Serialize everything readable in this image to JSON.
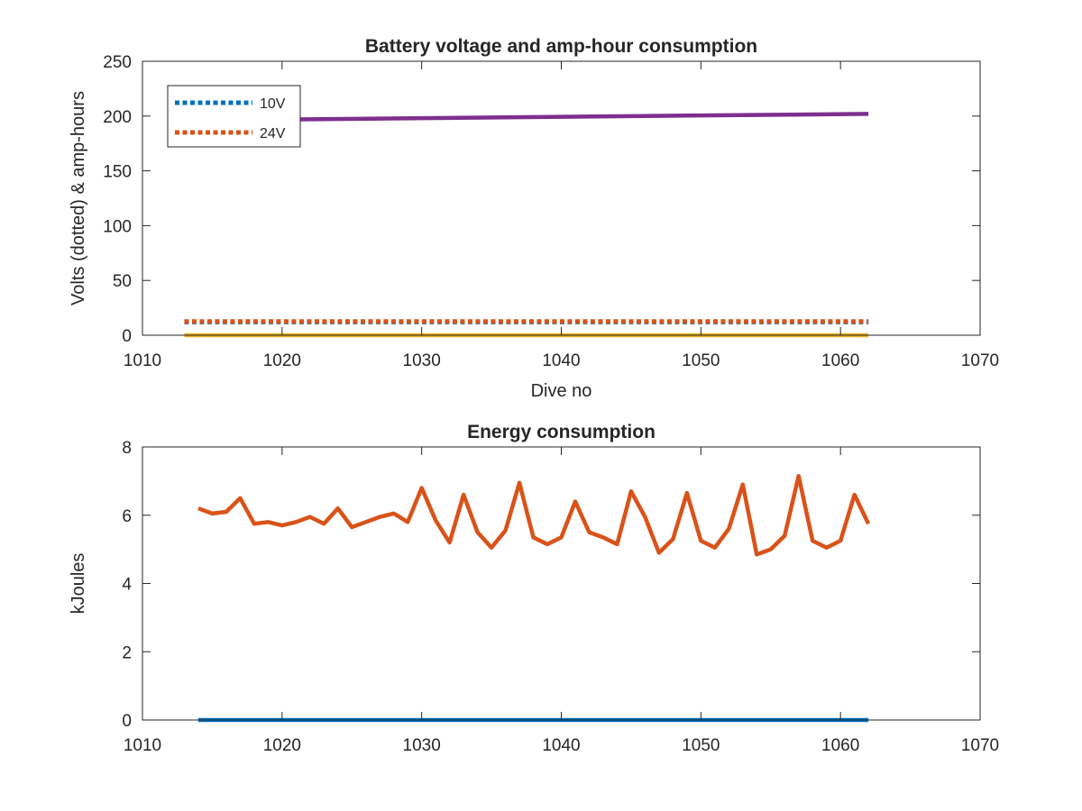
{
  "chart_data": [
    {
      "type": "line",
      "title": "Battery voltage and amp-hour consumption",
      "xlabel": "Dive no",
      "ylabel": "Volts (dotted) & amp-hours",
      "xlim": [
        1010,
        1070
      ],
      "ylim": [
        0,
        250
      ],
      "xticks": [
        "1010",
        "1020",
        "1030",
        "1040",
        "1050",
        "1060",
        "1070"
      ],
      "yticks": [
        "0",
        "50",
        "100",
        "150",
        "200",
        "250"
      ],
      "legend_position": "top-left",
      "legend": [
        "10V",
        "24V"
      ],
      "series": [
        {
          "name": "10V",
          "style": "dotted",
          "color": "#0072BD",
          "x": [
            1013,
            1062
          ],
          "y": [
            12,
            12
          ]
        },
        {
          "name": "24V",
          "style": "dotted",
          "color": "#D95319",
          "x": [
            1013,
            1062
          ],
          "y": [
            12.5,
            12.5
          ]
        },
        {
          "style": "solid",
          "color": "#EDB120",
          "x": [
            1013,
            1062
          ],
          "y": [
            0,
            0
          ]
        },
        {
          "style": "solid",
          "color": "#7E2F8E",
          "x": [
            1013,
            1062
          ],
          "y": [
            196,
            202
          ]
        }
      ]
    },
    {
      "type": "line",
      "title": "Energy consumption",
      "xlabel": "",
      "ylabel": "kJoules",
      "xlim": [
        1010,
        1070
      ],
      "ylim": [
        0,
        8
      ],
      "xticks": [
        "1010",
        "1020",
        "1030",
        "1040",
        "1050",
        "1060",
        "1070"
      ],
      "yticks": [
        "0",
        "2",
        "4",
        "6",
        "8"
      ],
      "series": [
        {
          "style": "solid",
          "color": "#D95319",
          "x": [
            1014,
            1015,
            1016,
            1017,
            1018,
            1019,
            1020,
            1021,
            1022,
            1023,
            1024,
            1025,
            1026,
            1027,
            1028,
            1029,
            1030,
            1031,
            1032,
            1033,
            1034,
            1035,
            1036,
            1037,
            1038,
            1039,
            1040,
            1041,
            1042,
            1043,
            1044,
            1045,
            1046,
            1047,
            1048,
            1049,
            1050,
            1051,
            1052,
            1053,
            1054,
            1055,
            1056,
            1057,
            1058,
            1059,
            1060,
            1061,
            1062
          ],
          "y": [
            6.2,
            6.05,
            6.1,
            6.5,
            5.75,
            5.8,
            5.7,
            5.8,
            5.95,
            5.75,
            6.2,
            5.65,
            5.8,
            5.95,
            6.05,
            5.8,
            6.8,
            5.85,
            5.2,
            6.6,
            5.5,
            5.05,
            5.55,
            6.95,
            5.35,
            5.15,
            5.35,
            6.4,
            5.5,
            5.35,
            5.15,
            6.7,
            5.95,
            4.9,
            5.3,
            6.65,
            5.25,
            5.05,
            5.6,
            6.9,
            4.85,
            5.0,
            5.4,
            7.15,
            5.25,
            5.05,
            5.25,
            6.6,
            5.75
          ]
        },
        {
          "style": "solid",
          "color": "#0072BD",
          "x": [
            1014,
            1062
          ],
          "y": [
            0,
            0
          ]
        }
      ]
    }
  ]
}
